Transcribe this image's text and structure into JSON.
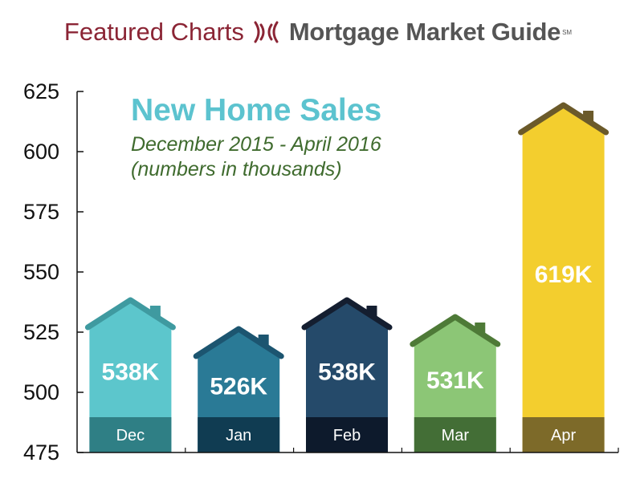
{
  "header": {
    "left": "Featured Charts",
    "brand": "Mortgage Market Guide",
    "sm": "SM"
  },
  "chart_data": {
    "type": "bar",
    "title": "New Home Sales",
    "subtitle_lines": [
      "December 2015 - April 2016",
      "(numbers in thousands)"
    ],
    "categories": [
      "Dec",
      "Jan",
      "Feb",
      "Mar",
      "Apr"
    ],
    "values": [
      538,
      526,
      538,
      531,
      619
    ],
    "value_labels": [
      "538K",
      "526K",
      "538K",
      "531K",
      "619K"
    ],
    "ylim": [
      475,
      625
    ],
    "yticks": [
      475,
      500,
      525,
      550,
      575,
      600,
      625
    ],
    "colors": [
      {
        "body": "#5cc6cc",
        "base": "#2f7f85",
        "roof": "#3f9aa0"
      },
      {
        "body": "#2a7a96",
        "base": "#103c52",
        "roof": "#1c5570"
      },
      {
        "body": "#254a6a",
        "base": "#0d1a2c",
        "roof": "#141e30"
      },
      {
        "body": "#8cc676",
        "base": "#436e36",
        "roof": "#4e7a37"
      },
      {
        "body": "#f3ce2e",
        "base": "#7d6a29",
        "roof": "#6b5a2a"
      }
    ]
  }
}
